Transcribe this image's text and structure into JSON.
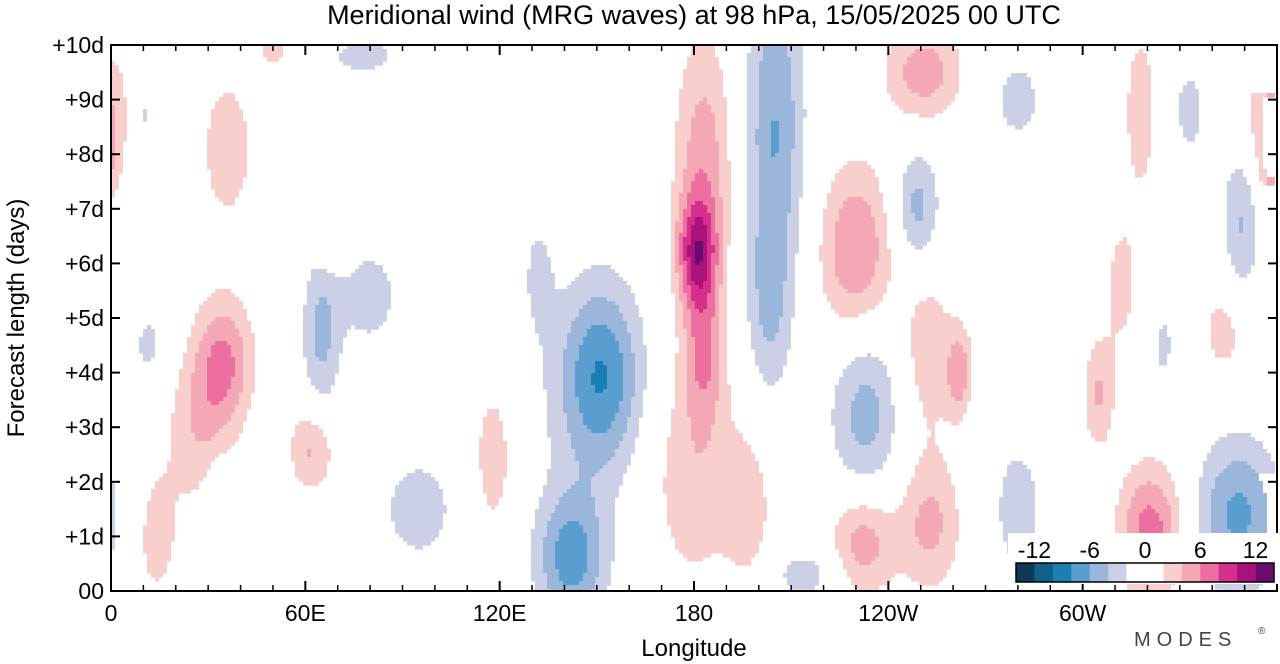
{
  "chart_data": {
    "type": "heatmap",
    "title": "Meridional wind (MRG waves) at  98 hPa,  15/05/2025  00 UTC",
    "xlabel": "Longitude",
    "ylabel": "Forecast length (days)",
    "x_ticks": [
      {
        "lon": 0,
        "label": "0"
      },
      {
        "lon": 60,
        "label": "60E"
      },
      {
        "lon": 120,
        "label": "120E"
      },
      {
        "lon": 180,
        "label": "180"
      },
      {
        "lon": 240,
        "label": "120W"
      },
      {
        "lon": 300,
        "label": "60W"
      }
    ],
    "y_ticks": [
      {
        "day": 0,
        "label": "00"
      },
      {
        "day": 1,
        "label": "+1d"
      },
      {
        "day": 2,
        "label": "+2d"
      },
      {
        "day": 3,
        "label": "+3d"
      },
      {
        "day": 4,
        "label": "+4d"
      },
      {
        "day": 5,
        "label": "+5d"
      },
      {
        "day": 6,
        "label": "+6d"
      },
      {
        "day": 7,
        "label": "+7d"
      },
      {
        "day": 8,
        "label": "+8d"
      },
      {
        "day": 9,
        "label": "+9d"
      },
      {
        "day": 10,
        "label": "+10d"
      }
    ],
    "xlim": [
      0,
      360
    ],
    "ylim": [
      0,
      10
    ],
    "colorbar": {
      "levels": [
        -14,
        -12,
        -10,
        -8,
        -6,
        -4,
        -2,
        0,
        2,
        4,
        6,
        8,
        10,
        12,
        14
      ],
      "colors": [
        "#0d3b57",
        "#11618a",
        "#1b7fb3",
        "#5a9ecf",
        "#9ab6da",
        "#cbd0e6",
        "#ffffff",
        "#ffffff",
        "#f8cfcc",
        "#f4a8b6",
        "#ec6fa0",
        "#d62e8c",
        "#a8127a",
        "#6a0c6e"
      ],
      "tick_labels": [
        {
          "value": -12,
          "label": "-12"
        },
        {
          "value": -6,
          "label": "-6"
        },
        {
          "value": 0,
          "label": "0"
        },
        {
          "value": 6,
          "label": "6"
        },
        {
          "value": 12,
          "label": "12"
        }
      ]
    },
    "blobs": [
      {
        "lon": 183,
        "day": 7.8,
        "rlon": 9,
        "rday": 2.4,
        "v": 5.2
      },
      {
        "lon": 181,
        "day": 6.2,
        "rlon": 6,
        "rday": 1.0,
        "v": 8.4
      },
      {
        "lon": 183,
        "day": 4.4,
        "rlon": 6,
        "rday": 1.3,
        "v": 5.0
      },
      {
        "lon": 180,
        "day": 2.2,
        "rlon": 14,
        "rday": 2.2,
        "v": 3.5
      },
      {
        "lon": 197,
        "day": 1.5,
        "rlon": 7,
        "rday": 1.4,
        "v": 3.0
      },
      {
        "lon": 205,
        "day": 8.5,
        "rlon": 9,
        "rday": 3.0,
        "v": -6.0
      },
      {
        "lon": 203,
        "day": 5.2,
        "rlon": 7,
        "rday": 1.7,
        "v": -3.5
      },
      {
        "lon": 152,
        "day": 4.0,
        "rlon": 12,
        "rday": 1.6,
        "v": -5.5
      },
      {
        "lon": 148,
        "day": 3.6,
        "rlon": 16,
        "rday": 2.1,
        "v": -3.0
      },
      {
        "lon": 142,
        "day": 0.6,
        "rlon": 11,
        "rday": 1.2,
        "v": -7.0
      },
      {
        "lon": 132,
        "day": 5.8,
        "rlon": 5,
        "rday": 1.1,
        "v": -2.5
      },
      {
        "lon": 12,
        "day": 4.5,
        "rlon": 7,
        "rday": 0.8,
        "v": -2.5
      },
      {
        "lon": 35,
        "day": 4.2,
        "rlon": 9,
        "rday": 1.2,
        "v": 6.0
      },
      {
        "lon": 27,
        "day": 3.0,
        "rlon": 10,
        "rday": 1.5,
        "v": 3.5
      },
      {
        "lon": 14,
        "day": 1.0,
        "rlon": 7,
        "rday": 1.3,
        "v": 3.0
      },
      {
        "lon": 62,
        "day": 2.6,
        "rlon": 7,
        "rday": 0.8,
        "v": 4.5
      },
      {
        "lon": 36,
        "day": 8.1,
        "rlon": 9,
        "rday": 1.5,
        "v": 3.2
      },
      {
        "lon": 65,
        "day": 4.7,
        "rlon": 6,
        "rday": 1.5,
        "v": -4.5
      },
      {
        "lon": 80,
        "day": 5.4,
        "rlon": 10,
        "rday": 1.0,
        "v": -3.0
      },
      {
        "lon": 95,
        "day": 1.5,
        "rlon": 13,
        "rday": 1.1,
        "v": -3.0
      },
      {
        "lon": 33,
        "day": 1.5,
        "rlon": 4,
        "rday": 0.9,
        "v": -2.5
      },
      {
        "lon": 10,
        "day": 8.7,
        "rlon": 4,
        "rday": 0.7,
        "v": -2.5
      },
      {
        "lon": 78,
        "day": 9.8,
        "rlon": 16,
        "rday": 0.5,
        "v": -2.5
      },
      {
        "lon": 50,
        "day": 9.9,
        "rlon": 5,
        "rday": 0.3,
        "v": 3.0
      },
      {
        "lon": 118,
        "day": 2.4,
        "rlon": 7,
        "rday": 1.6,
        "v": 3.0
      },
      {
        "lon": 68,
        "day": 6.3,
        "rlon": 4,
        "rday": 0.4,
        "v": 3.0
      },
      {
        "lon": 253,
        "day": 1.2,
        "rlon": 10,
        "rday": 1.2,
        "v": 4.5
      },
      {
        "lon": 232,
        "day": 0.9,
        "rlon": 10,
        "rday": 1.0,
        "v": 5.5
      },
      {
        "lon": 230,
        "day": 6.2,
        "rlon": 11,
        "rday": 1.6,
        "v": 6.2
      },
      {
        "lon": 252,
        "day": 4.4,
        "rlon": 9,
        "rday": 1.8,
        "v": 3.2
      },
      {
        "lon": 262,
        "day": 4.0,
        "rlon": 4,
        "rday": 0.8,
        "v": 5.0
      },
      {
        "lon": 251,
        "day": 9.5,
        "rlon": 12,
        "rday": 0.9,
        "v": 5.2
      },
      {
        "lon": 249,
        "day": 7.0,
        "rlon": 7,
        "rday": 1.1,
        "v": -5.0
      },
      {
        "lon": 233,
        "day": 3.3,
        "rlon": 11,
        "rday": 1.7,
        "v": -5.0
      },
      {
        "lon": 215,
        "day": 0.3,
        "rlon": 12,
        "rday": 0.5,
        "v": -3.0
      },
      {
        "lon": 280,
        "day": 9.0,
        "rlon": 11,
        "rday": 1.1,
        "v": -2.5
      },
      {
        "lon": 280,
        "day": 1.5,
        "rlon": 12,
        "rday": 1.9,
        "v": -2.5
      },
      {
        "lon": 305,
        "day": 3.6,
        "rlon": 5,
        "rday": 1.0,
        "v": 4.2
      },
      {
        "lon": 312,
        "day": 5.6,
        "rlon": 6,
        "rday": 1.4,
        "v": 2.6
      },
      {
        "lon": 321,
        "day": 1.1,
        "rlon": 10,
        "rday": 1.2,
        "v": 7.0
      },
      {
        "lon": 333,
        "day": 8.8,
        "rlon": 7,
        "rday": 1.2,
        "v": -2.5
      },
      {
        "lon": 348,
        "day": 1.4,
        "rlon": 13,
        "rday": 1.4,
        "v": -6.5
      },
      {
        "lon": 349,
        "day": 6.7,
        "rlon": 6,
        "rday": 1.5,
        "v": -4.2
      },
      {
        "lon": 344,
        "day": 4.8,
        "rlon": 8,
        "rday": 1.0,
        "v": 3.0
      },
      {
        "lon": 358,
        "day": 8.7,
        "rlon": 8,
        "rday": 1.2,
        "v": 4.6
      },
      {
        "lon": 318,
        "day": 8.8,
        "rlon": 6,
        "rday": 1.8,
        "v": 3.0
      },
      {
        "lon": 325,
        "day": 4.5,
        "rlon": 4,
        "rday": 0.8,
        "v": -2.5
      },
      {
        "lon": 358,
        "day": 7.6,
        "rlon": 4,
        "rday": 0.6,
        "v": 3.0
      }
    ]
  },
  "branding": {
    "wordmark": "MODES",
    "mark": "®"
  }
}
